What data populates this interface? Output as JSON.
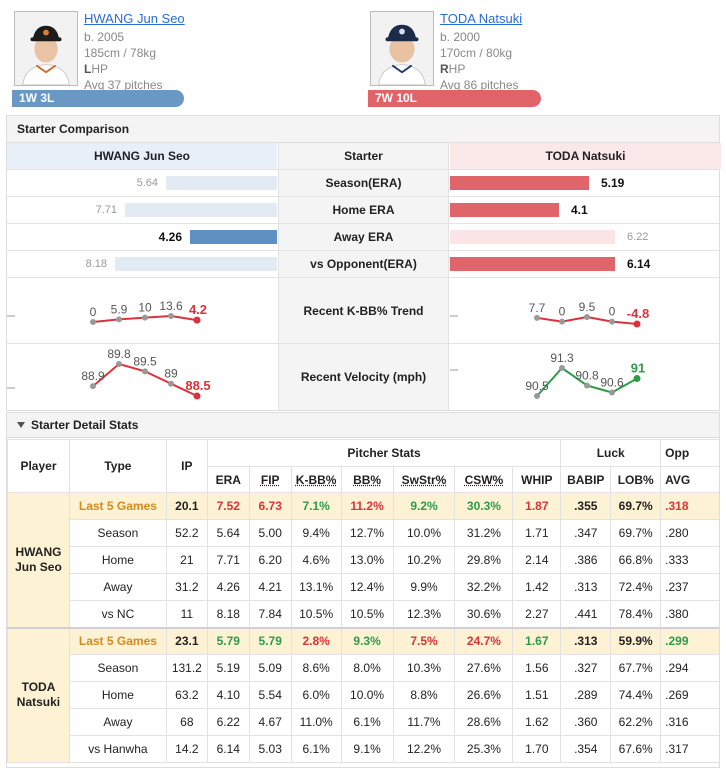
{
  "top_link": "▸ ▸",
  "players": {
    "left": {
      "name": "HWANG Jun Seo",
      "born": "b. 2005",
      "size": "185cm / 78kg",
      "hand_letter": "L",
      "hand_rest": "HP",
      "avg": "Avg 37 pitches",
      "record": "1W 3L"
    },
    "right": {
      "name": "TODA Natsuki",
      "born": "b. 2000",
      "size": "170cm / 80kg",
      "hand_letter": "R",
      "hand_rest": "HP",
      "avg": "Avg 86 pitches",
      "record": "7W 10L"
    }
  },
  "comparison": {
    "title": "Starter Comparison",
    "header": {
      "left": "HWANG Jun Seo",
      "middle": "Starter",
      "right": "TODA Natsuki"
    },
    "rows": [
      {
        "label": "Season(ERA)",
        "left": "5.64",
        "right": "5.19",
        "left_fill": 0.55,
        "right_fill": 0.52,
        "left_strong": false,
        "right_strong": true
      },
      {
        "label": "Home ERA",
        "left": "7.71",
        "right": "4.1",
        "left_fill": 0.75,
        "right_fill": 0.41,
        "left_strong": false,
        "right_strong": true
      },
      {
        "label": "Away ERA",
        "left": "4.26",
        "right": "6.22",
        "left_fill": 0.43,
        "right_fill": 0.62,
        "left_strong": true,
        "right_strong": false
      },
      {
        "label": "vs Opponent(ERA)",
        "left": "8.18",
        "right": "6.14",
        "left_fill": 0.8,
        "right_fill": 0.62,
        "left_strong": false,
        "right_strong": true
      }
    ],
    "kbb": {
      "label": "Recent K-BB% Trend",
      "left": [
        "0",
        "5.9",
        "10",
        "13.6",
        "4.2"
      ],
      "left_values": [
        0,
        5.9,
        10,
        13.6,
        4.2
      ],
      "right": [
        "7.7",
        "0",
        "9.5",
        "0",
        "-4.8"
      ],
      "right_values": [
        7.7,
        0,
        9.5,
        0,
        -4.8
      ]
    },
    "velo": {
      "label": "Recent Velocity (mph)",
      "left": [
        "88.9",
        "89.8",
        "89.5",
        "89",
        "88.5"
      ],
      "left_values": [
        88.9,
        89.8,
        89.5,
        89,
        88.5
      ],
      "right": [
        "90.5",
        "91.3",
        "90.8",
        "90.6",
        "91"
      ],
      "right_values": [
        90.5,
        91.3,
        90.8,
        90.6,
        91
      ]
    }
  },
  "detail": {
    "title": "Starter Detail Stats",
    "head": {
      "player": "Player",
      "type": "Type",
      "ip": "IP",
      "pitcher_stats": "Pitcher Stats",
      "luck": "Luck",
      "opp": "Opp",
      "cols": [
        "ERA",
        "FIP",
        "K-BB%",
        "BB%",
        "SwStr%",
        "CSW%",
        "WHIP",
        "BABIP",
        "LOB%",
        "AVG"
      ]
    },
    "left_name_1": "HWANG",
    "left_name_2": "Jun Seo",
    "right_name_1": "TODA",
    "right_name_2": "Natsuki",
    "left_rows": [
      {
        "type": "Last 5 Games",
        "ip": "20.1",
        "cells": [
          "7.52",
          "6.73",
          "7.1%",
          "11.2%",
          "9.2%",
          "30.3%",
          "1.87",
          ".355",
          "69.7%",
          ".318"
        ]
      },
      {
        "type": "Season",
        "ip": "52.2",
        "cells": [
          "5.64",
          "5.00",
          "9.4%",
          "12.7%",
          "10.0%",
          "31.2%",
          "1.71",
          ".347",
          "69.7%",
          ".280"
        ]
      },
      {
        "type": "Home",
        "ip": "21",
        "cells": [
          "7.71",
          "6.20",
          "4.6%",
          "13.0%",
          "10.2%",
          "29.8%",
          "2.14",
          ".386",
          "66.8%",
          ".333"
        ]
      },
      {
        "type": "Away",
        "ip": "31.2",
        "cells": [
          "4.26",
          "4.21",
          "13.1%",
          "12.4%",
          "9.9%",
          "32.2%",
          "1.42",
          ".313",
          "72.4%",
          ".237"
        ]
      },
      {
        "type": "vs NC",
        "ip": "11",
        "cells": [
          "8.18",
          "7.84",
          "10.5%",
          "10.5%",
          "12.3%",
          "30.6%",
          "2.27",
          ".441",
          "78.4%",
          ".380"
        ]
      }
    ],
    "right_rows": [
      {
        "type": "Last 5 Games",
        "ip": "23.1",
        "cells": [
          "5.79",
          "5.79",
          "2.8%",
          "9.3%",
          "7.5%",
          "24.7%",
          "1.67",
          ".313",
          "59.9%",
          ".299"
        ]
      },
      {
        "type": "Season",
        "ip": "131.2",
        "cells": [
          "5.19",
          "5.09",
          "8.6%",
          "8.0%",
          "10.3%",
          "27.6%",
          "1.56",
          ".327",
          "67.7%",
          ".294"
        ]
      },
      {
        "type": "Home",
        "ip": "63.2",
        "cells": [
          "4.10",
          "5.54",
          "6.0%",
          "10.0%",
          "8.8%",
          "26.6%",
          "1.51",
          ".289",
          "74.4%",
          ".269"
        ]
      },
      {
        "type": "Away",
        "ip": "68",
        "cells": [
          "6.22",
          "4.67",
          "11.0%",
          "6.1%",
          "11.7%",
          "28.6%",
          "1.62",
          ".360",
          "62.2%",
          ".316"
        ]
      },
      {
        "type": "vs Hanwha",
        "ip": "14.2",
        "cells": [
          "6.14",
          "5.03",
          "6.1%",
          "9.1%",
          "12.2%",
          "25.3%",
          "1.70",
          ".354",
          "67.6%",
          ".317"
        ]
      }
    ],
    "left_last5_colors": [
      "red",
      "red",
      "green",
      "red",
      "green",
      "green",
      "red",
      "plain",
      "plain",
      "red"
    ],
    "right_last5_colors": [
      "green",
      "green",
      "red",
      "green",
      "red",
      "red",
      "green",
      "plain",
      "plain",
      "green"
    ]
  },
  "colors": {
    "blue": "#5f90c2",
    "red": "#e0656b",
    "green": "#2e9b4b",
    "dark_red": "#d9333b",
    "gray_line": "#888888"
  }
}
